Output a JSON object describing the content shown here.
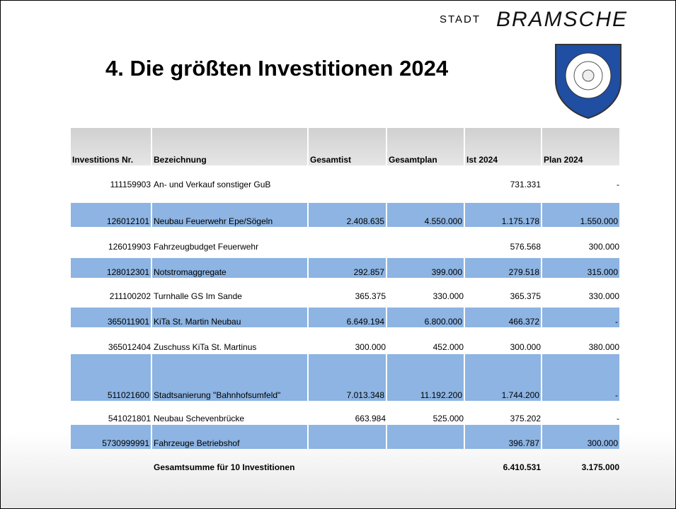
{
  "header": {
    "stadt": "STADT",
    "brand": "BRAMSCHE",
    "title": "4. Die größten Investitionen 2024"
  },
  "table": {
    "columns": [
      "Investitions Nr.",
      "Bezeichnung",
      "Gesamtist",
      "Gesamtplan",
      "Ist 2024",
      "Plan 2024"
    ],
    "rows": [
      [
        "111159903",
        "An- und Verkauf sonstiger GuB",
        null,
        null,
        "731.331",
        "-"
      ],
      [
        "126012101",
        "Neubau Feuerwehr Epe/Sögeln",
        "2.408.635",
        "4.550.000",
        "1.175.178",
        "1.550.000"
      ],
      [
        "126019903",
        "Fahrzeugbudget Feuerwehr",
        null,
        null,
        "576.568",
        "300.000"
      ],
      [
        "128012301",
        "Notstromaggregate",
        "292.857",
        "399.000",
        "279.518",
        "315.000"
      ],
      [
        "211100202",
        "Turnhalle GS Im Sande",
        "365.375",
        "330.000",
        "365.375",
        "330.000"
      ],
      [
        "365011901",
        "KiTa St. Martin Neubau",
        "6.649.194",
        "6.800.000",
        "466.372",
        "-"
      ],
      [
        "365012404",
        "Zuschuss KiTa St. Martinus",
        "300.000",
        "452.000",
        "300.000",
        "380.000"
      ],
      [
        "511021600",
        "Stadtsanierung \"Bahnhofsumfeld\"",
        "7.013.348",
        "11.192.200",
        "1.744.200",
        "-"
      ],
      [
        "541021801",
        "Neubau Schevenbrücke",
        "663.984",
        "525.000",
        "375.202",
        "-"
      ],
      [
        "5730999991",
        "Fahrzeuge Betriebshof",
        null,
        null,
        "396.787",
        "300.000"
      ]
    ],
    "total": [
      null,
      "Gesamtsumme für 10 Investitionen",
      null,
      null,
      "6.410.531",
      "3.175.000"
    ]
  }
}
